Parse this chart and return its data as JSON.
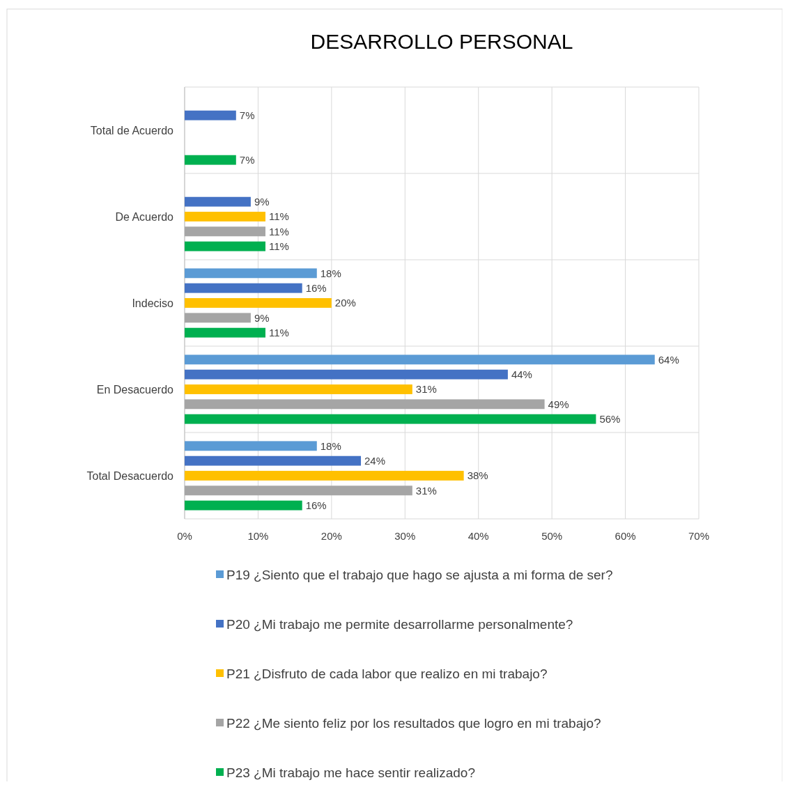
{
  "chart_data": {
    "type": "bar",
    "orientation": "horizontal",
    "title": "DESARROLLO PERSONAL",
    "categories": [
      "Total de Acuerdo",
      "De Acuerdo",
      "Indeciso",
      "En Desacuerdo",
      "Total Desacuerdo"
    ],
    "series": [
      {
        "name": "P19 ¿Siento que el trabajo que hago se ajusta a mi forma de ser?",
        "color": "#5b9bd5",
        "values": [
          null,
          null,
          18,
          64,
          18
        ],
        "value_labels": [
          null,
          null,
          "18%",
          "64%",
          "18%"
        ]
      },
      {
        "name": "P20 ¿Mi trabajo me permite desarrollarme personalmente?",
        "color": "#4472c4",
        "values": [
          7,
          9,
          16,
          44,
          24
        ],
        "value_labels": [
          "7%",
          "9%",
          "16%",
          "44%",
          "24%"
        ]
      },
      {
        "name": "P21 ¿Disfruto de cada labor que realizo en mi trabajo?",
        "color": "#ffc000",
        "values": [
          null,
          11,
          20,
          31,
          38
        ],
        "value_labels": [
          null,
          "11%",
          "20%",
          "31%",
          "38%"
        ]
      },
      {
        "name": "P22 ¿Me siento feliz por los resultados que logro en mi trabajo?",
        "color": "#a5a5a5",
        "values": [
          null,
          11,
          9,
          49,
          31
        ],
        "value_labels": [
          null,
          "11%",
          "9%",
          "49%",
          "31%"
        ]
      },
      {
        "name": "P23 ¿Mi trabajo me hace sentir realizado?",
        "color": "#00b050",
        "values": [
          7,
          11,
          11,
          56,
          16
        ],
        "value_labels": [
          "7%",
          "11%",
          "11%",
          "56%",
          "16%"
        ]
      }
    ],
    "xlim": [
      0,
      70
    ],
    "xticks": [
      {
        "value": 0,
        "label": "0%"
      },
      {
        "value": 10,
        "label": "10%"
      },
      {
        "value": 20,
        "label": "20%"
      },
      {
        "value": 30,
        "label": "30%"
      },
      {
        "value": 40,
        "label": "40%"
      },
      {
        "value": 50,
        "label": "50%"
      },
      {
        "value": 60,
        "label": "60%"
      },
      {
        "value": 70,
        "label": "70%"
      }
    ],
    "grid": true,
    "legend": "bottom"
  }
}
